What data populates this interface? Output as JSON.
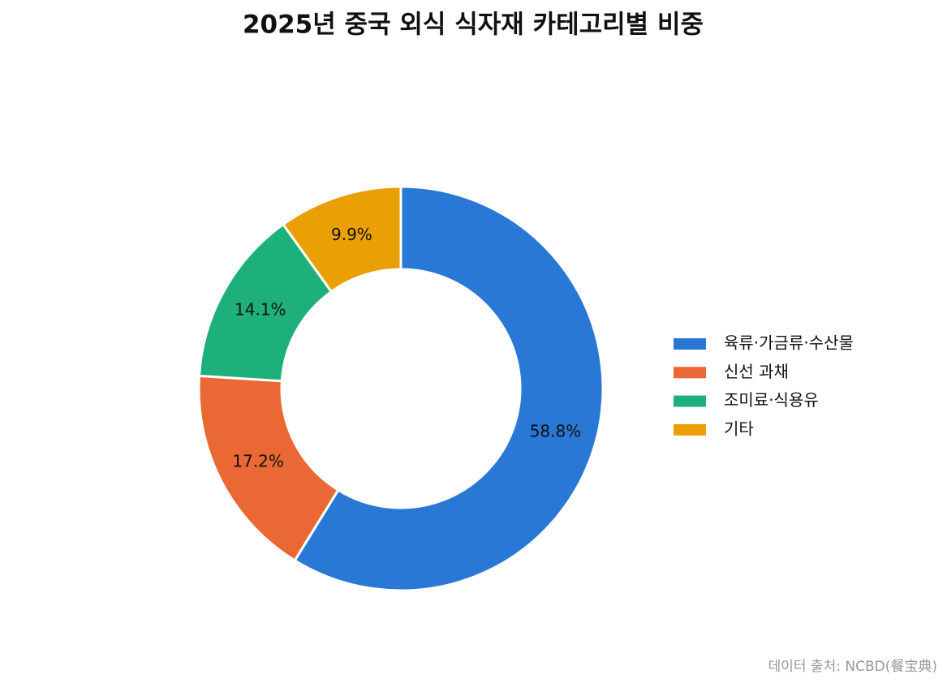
{
  "chart_data": {
    "type": "donut",
    "title": "2025년 중국 외식 식자재 카테고리별 비중",
    "categories": [
      "육류·가금류·수산물",
      "신선 과채",
      "조미료·식용유",
      "기타"
    ],
    "values": [
      58.8,
      17.2,
      14.1,
      9.9
    ],
    "value_labels": [
      "58.8%",
      "17.2%",
      "14.1%",
      "9.9%"
    ],
    "colors": [
      "#2a78d6",
      "#e96834",
      "#1eb07a",
      "#eaa004"
    ],
    "legend": "right",
    "source": "데이터 출처: NCBD(餐宝典)"
  }
}
